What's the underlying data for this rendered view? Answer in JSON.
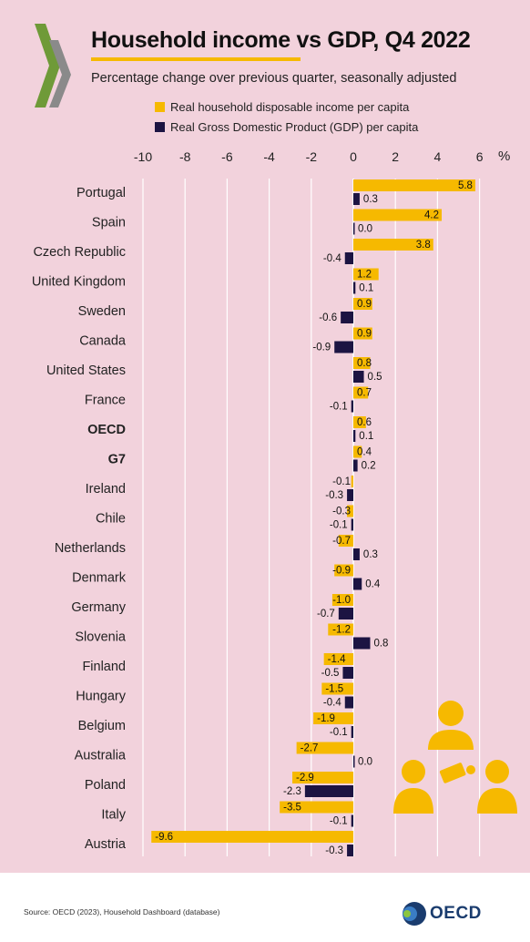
{
  "header": {
    "title": "Household income vs GDP, Q4 2022",
    "subtitle": "Percentage change over previous quarter, seasonally adjusted"
  },
  "legend": {
    "income_label": "Real household disposable income per capita",
    "gdp_label": "Real Gross Domestic Product (GDP) per capita"
  },
  "colors": {
    "income": "#f6b900",
    "gdp": "#1c1442",
    "logo_green": "#6f9a38"
  },
  "unit_label": "%",
  "footer": {
    "source": "Source: OECD (2023), Household Dashboard (database)",
    "logo_text": "OECD"
  },
  "chart_data": {
    "type": "bar",
    "orientation": "horizontal",
    "categories": [
      "Portugal",
      "Spain",
      "Czech Republic",
      "United Kingdom",
      "Sweden",
      "Canada",
      "United States",
      "France",
      "OECD",
      "G7",
      "Ireland",
      "Chile",
      "Netherlands",
      "Denmark",
      "Germany",
      "Slovenia",
      "Finland",
      "Hungary",
      "Belgium",
      "Australia",
      "Poland",
      "Italy",
      "Austria"
    ],
    "bold_categories": [
      "OECD",
      "G7"
    ],
    "series": [
      {
        "name": "Real household disposable income per capita",
        "values": [
          5.8,
          4.2,
          3.8,
          1.2,
          0.9,
          0.9,
          0.8,
          0.7,
          0.6,
          0.4,
          -0.1,
          -0.3,
          -0.7,
          -0.9,
          -1.0,
          -1.2,
          -1.4,
          -1.5,
          -1.9,
          -2.7,
          -2.9,
          -3.5,
          -9.6
        ]
      },
      {
        "name": "Real Gross Domestic Product (GDP) per capita",
        "values": [
          0.3,
          0.0,
          -0.4,
          0.1,
          -0.6,
          -0.9,
          0.5,
          -0.1,
          0.1,
          0.2,
          -0.3,
          -0.1,
          0.3,
          0.4,
          -0.7,
          0.8,
          -0.5,
          -0.4,
          -0.1,
          0.0,
          -2.3,
          -0.1,
          -0.3
        ]
      }
    ],
    "xlim": [
      -10,
      6
    ],
    "xticks": [
      -10,
      -8,
      -6,
      -4,
      -2,
      0,
      2,
      4,
      6
    ],
    "grid": true,
    "legend_position": "top"
  }
}
